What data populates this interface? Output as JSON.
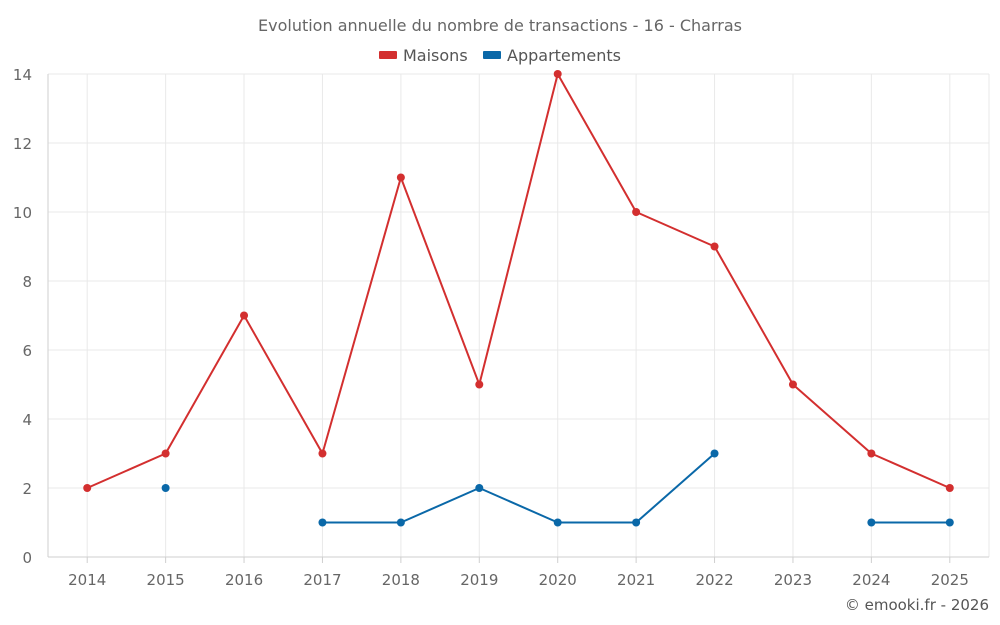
{
  "chart_data": {
    "type": "line",
    "title": "Evolution annuelle du nombre de transactions - 16 - Charras",
    "categories": [
      "2014",
      "2015",
      "2016",
      "2017",
      "2018",
      "2019",
      "2020",
      "2021",
      "2022",
      "2023",
      "2024",
      "2025"
    ],
    "ylim": [
      0,
      14
    ],
    "yticks": [
      0,
      2,
      4,
      6,
      8,
      10,
      12,
      14
    ],
    "grid": true,
    "legend_position": "top-center",
    "series": [
      {
        "name": "Maisons",
        "color": "#d32f2f",
        "values": [
          2,
          3,
          7,
          3,
          11,
          5,
          14,
          10,
          9,
          5,
          3,
          2
        ]
      },
      {
        "name": "Appartements",
        "color": "#0a68a8",
        "values": [
          null,
          2,
          null,
          1,
          1,
          2,
          1,
          1,
          3,
          null,
          1,
          1
        ]
      }
    ]
  },
  "footer": {
    "copyright": "© emooki.fr - 2026"
  }
}
